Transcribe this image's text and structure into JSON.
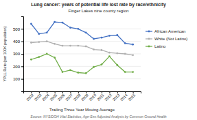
{
  "chart_data": {
    "type": "line",
    "title": "Lung cancer: years of potential life lost rate by race/ethnicity",
    "subtitle": "Finger Lakes nine county region",
    "x_label": "Trailing Three Year Moving Average",
    "y_label": "YPLL Rate (per 100K population)",
    "annotations": [
      "Source: NYS/DOH Vital Statistics, Age-Sex Adjusted Analysis by Common Ground Health"
    ],
    "x": [
      2002,
      2003,
      2004,
      2005,
      2006,
      2007,
      2008,
      2009,
      2010,
      2011,
      2012,
      2013,
      2014,
      2015
    ],
    "series": [
      {
        "name": "African American",
        "color": "#4472C4",
        "marker": "circle",
        "values": [
          540,
          460,
          470,
          555,
          550,
          510,
          500,
          470,
          420,
          430,
          445,
          450,
          385,
          375
        ]
      },
      {
        "name": "White (Not Latino)",
        "color": "#B0B0B0",
        "marker": "circle",
        "values": [
          390,
          395,
          400,
          380,
          365,
          365,
          365,
          360,
          335,
          330,
          310,
          305,
          300,
          290
        ]
      },
      {
        "name": "Latino",
        "color": "#70AD47",
        "marker": "circle",
        "values": [
          255,
          275,
          300,
          270,
          155,
          170,
          150,
          145,
          195,
          215,
          280,
          210,
          155,
          155
        ]
      }
    ],
    "xlim": [
      2001,
      2016
    ],
    "xticks": [
      2002,
      2003,
      2004,
      2005,
      2006,
      2007,
      2008,
      2009,
      2010,
      2011,
      2012,
      2013,
      2014,
      2015
    ],
    "ylim": [
      0,
      600
    ],
    "yticks": [
      100,
      200,
      300,
      400,
      500
    ],
    "grid": true,
    "legend": "right"
  }
}
